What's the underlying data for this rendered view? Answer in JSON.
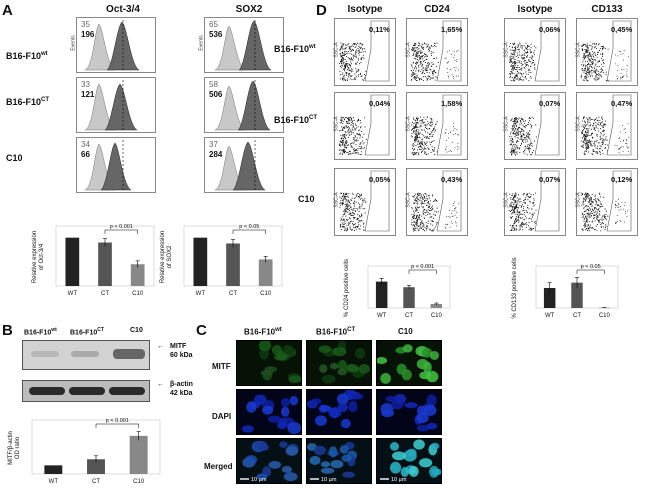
{
  "panels": {
    "A": "A",
    "B": "B",
    "C": "C",
    "D": "D"
  },
  "panelA": {
    "columns": [
      "Oct-3/4",
      "SOX2"
    ],
    "rows": [
      {
        "label_main": "B16-F10",
        "label_sup": "wt"
      },
      {
        "label_main": "B16-F10",
        "label_sup": "CT"
      },
      {
        "label_main": "C10",
        "label_sup": ""
      }
    ],
    "axis_small": "Events",
    "counts": [
      [
        {
          "grey": "35",
          "dark": "196"
        },
        {
          "grey": "65",
          "dark": "536"
        }
      ],
      [
        {
          "grey": "33",
          "dark": "121"
        },
        {
          "grey": "58",
          "dark": "506"
        }
      ],
      [
        {
          "grey": "34",
          "dark": "66"
        },
        {
          "grey": "37",
          "dark": "284"
        }
      ]
    ]
  },
  "panelB": {
    "lanes": [
      {
        "main": "B16-F10",
        "sup": "wt"
      },
      {
        "main": "B16-F10",
        "sup": "CT"
      },
      {
        "main": "C10",
        "sup": ""
      }
    ],
    "bands": [
      {
        "name": "MITF",
        "size": "60 kDa"
      },
      {
        "name": "β-actin",
        "size": "42 kDa"
      }
    ]
  },
  "panelC": {
    "columns": [
      {
        "main": "B16-F10",
        "sup": "wt"
      },
      {
        "main": "B16-F10",
        "sup": "CT"
      },
      {
        "main": "C10",
        "sup": ""
      }
    ],
    "rows": [
      "MITF",
      "DAPI",
      "Merged"
    ],
    "scalebar": "10 µm",
    "colors": {
      "mitf": "#1a7a1a",
      "dapi": "#1530c8",
      "merged": "#1cc0c0"
    }
  },
  "panelD": {
    "columns": [
      "Isotype",
      "CD24",
      "Isotype",
      "CD133"
    ],
    "rows": [
      {
        "main": "B16-F10",
        "sup": "wt"
      },
      {
        "main": "B16-F10",
        "sup": "CT"
      },
      {
        "main": "C10",
        "sup": ""
      }
    ],
    "axis_small": "SSC-A",
    "percents": [
      [
        "0,11%",
        "1,65%",
        "0,06%",
        "0,45%"
      ],
      [
        "0,04%",
        "1,58%",
        "0,07%",
        "0,47%"
      ],
      [
        "0,05%",
        "0,43%",
        "0,07%",
        "0,12%"
      ]
    ]
  },
  "chart_data": [
    {
      "id": "oct",
      "type": "bar",
      "categories": [
        "WT",
        "CT",
        "C10"
      ],
      "values": [
        1.0,
        0.9,
        0.45
      ],
      "errors": [
        0,
        0.08,
        0.07
      ],
      "ylim": [
        0,
        1.2
      ],
      "ylabel": "Relative expression\nof Oct-3/4",
      "annotation": "p < 0.001",
      "colors": [
        "#222",
        "#555",
        "#888"
      ]
    },
    {
      "id": "sox",
      "type": "bar",
      "categories": [
        "WT",
        "CT",
        "C10"
      ],
      "values": [
        1.0,
        0.88,
        0.55
      ],
      "errors": [
        0,
        0.08,
        0.06
      ],
      "ylim": [
        0,
        1.2
      ],
      "ylabel": "Relative expression\nof SOX2",
      "annotation": "p < 0.05",
      "colors": [
        "#222",
        "#555",
        "#888"
      ]
    },
    {
      "id": "mitf",
      "type": "bar",
      "categories": [
        "WT",
        "CT",
        "C10"
      ],
      "values": [
        1.0,
        1.7,
        4.4
      ],
      "errors": [
        0,
        0.4,
        0.5
      ],
      "ylim": [
        0,
        6
      ],
      "ylabel": "MITF/β-actin\nOD ratio",
      "annotation": "p < 0.001",
      "colors": [
        "#222",
        "#555",
        "#888"
      ]
    },
    {
      "id": "cd24",
      "type": "bar",
      "categories": [
        "WT",
        "CT",
        "C10"
      ],
      "values": [
        1.65,
        1.3,
        0.25
      ],
      "errors": [
        0.2,
        0.12,
        0.06
      ],
      "ylim": [
        0,
        2.5
      ],
      "ylabel": "% CD24 positive cells",
      "annotation": "p < 0.001",
      "colors": [
        "#222",
        "#555",
        "#888"
      ]
    },
    {
      "id": "cd133",
      "type": "bar",
      "categories": [
        "WT",
        "CT",
        "C10"
      ],
      "values": [
        0.3,
        0.38,
        0.005
      ],
      "errors": [
        0.08,
        0.08,
        0.003
      ],
      "ylim": [
        0,
        0.6
      ],
      "ylabel": "% CD133 positive cells",
      "annotation": "p < 0.05",
      "colors": [
        "#222",
        "#555",
        "#888"
      ]
    }
  ]
}
